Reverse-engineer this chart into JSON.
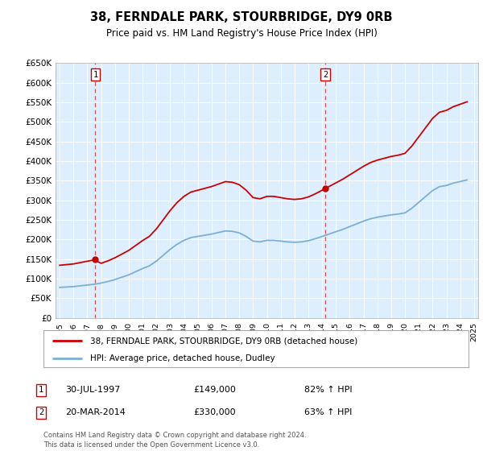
{
  "title": "38, FERNDALE PARK, STOURBRIDGE, DY9 0RB",
  "subtitle": "Price paid vs. HM Land Registry's House Price Index (HPI)",
  "transaction1_date": "1997-07-30",
  "transaction1_price": 149000,
  "transaction1_year": 1997.58,
  "transaction2_date": "2014-03-20",
  "transaction2_price": 330000,
  "transaction2_year": 2014.22,
  "legend_line1": "38, FERNDALE PARK, STOURBRIDGE, DY9 0RB (detached house)",
  "legend_line2": "HPI: Average price, detached house, Dudley",
  "annotation1_text": "30-JUL-1997",
  "annotation1_price": "£149,000",
  "annotation1_hpi": "82% ↑ HPI",
  "annotation2_text": "20-MAR-2014",
  "annotation2_price": "£330,000",
  "annotation2_hpi": "63% ↑ HPI",
  "footer": "Contains HM Land Registry data © Crown copyright and database right 2024.\nThis data is licensed under the Open Government Licence v3.0.",
  "red_color": "#cc0000",
  "blue_color": "#7ab0d4",
  "background_color": "#ddeeff",
  "ylim": [
    0,
    650000
  ],
  "yticks": [
    0,
    50000,
    100000,
    150000,
    200000,
    250000,
    300000,
    350000,
    400000,
    450000,
    500000,
    550000,
    600000,
    650000
  ],
  "years_hpi": [
    1995.0,
    1995.5,
    1996.0,
    1996.5,
    1997.0,
    1997.5,
    1998.0,
    1998.5,
    1999.0,
    1999.5,
    2000.0,
    2000.5,
    2001.0,
    2001.5,
    2002.0,
    2002.5,
    2003.0,
    2003.5,
    2004.0,
    2004.5,
    2005.0,
    2005.5,
    2006.0,
    2006.5,
    2007.0,
    2007.5,
    2008.0,
    2008.5,
    2009.0,
    2009.5,
    2010.0,
    2010.5,
    2011.0,
    2011.5,
    2012.0,
    2012.5,
    2013.0,
    2013.5,
    2014.0,
    2014.5,
    2015.0,
    2015.5,
    2016.0,
    2016.5,
    2017.0,
    2017.5,
    2018.0,
    2018.5,
    2019.0,
    2019.5,
    2020.0,
    2020.5,
    2021.0,
    2021.5,
    2022.0,
    2022.5,
    2023.0,
    2023.5,
    2024.0,
    2024.5
  ],
  "hpi_values": [
    78000,
    79000,
    80000,
    82000,
    84000,
    86000,
    89000,
    93000,
    98000,
    104000,
    110000,
    118000,
    126000,
    133000,
    145000,
    160000,
    175000,
    188000,
    198000,
    205000,
    208000,
    211000,
    214000,
    218000,
    222000,
    221000,
    217000,
    208000,
    196000,
    194000,
    198000,
    198000,
    196000,
    194000,
    193000,
    194000,
    197000,
    202000,
    208000,
    214000,
    220000,
    226000,
    233000,
    240000,
    247000,
    253000,
    257000,
    260000,
    263000,
    265000,
    268000,
    280000,
    295000,
    310000,
    325000,
    335000,
    338000,
    344000,
    348000,
    352000
  ]
}
